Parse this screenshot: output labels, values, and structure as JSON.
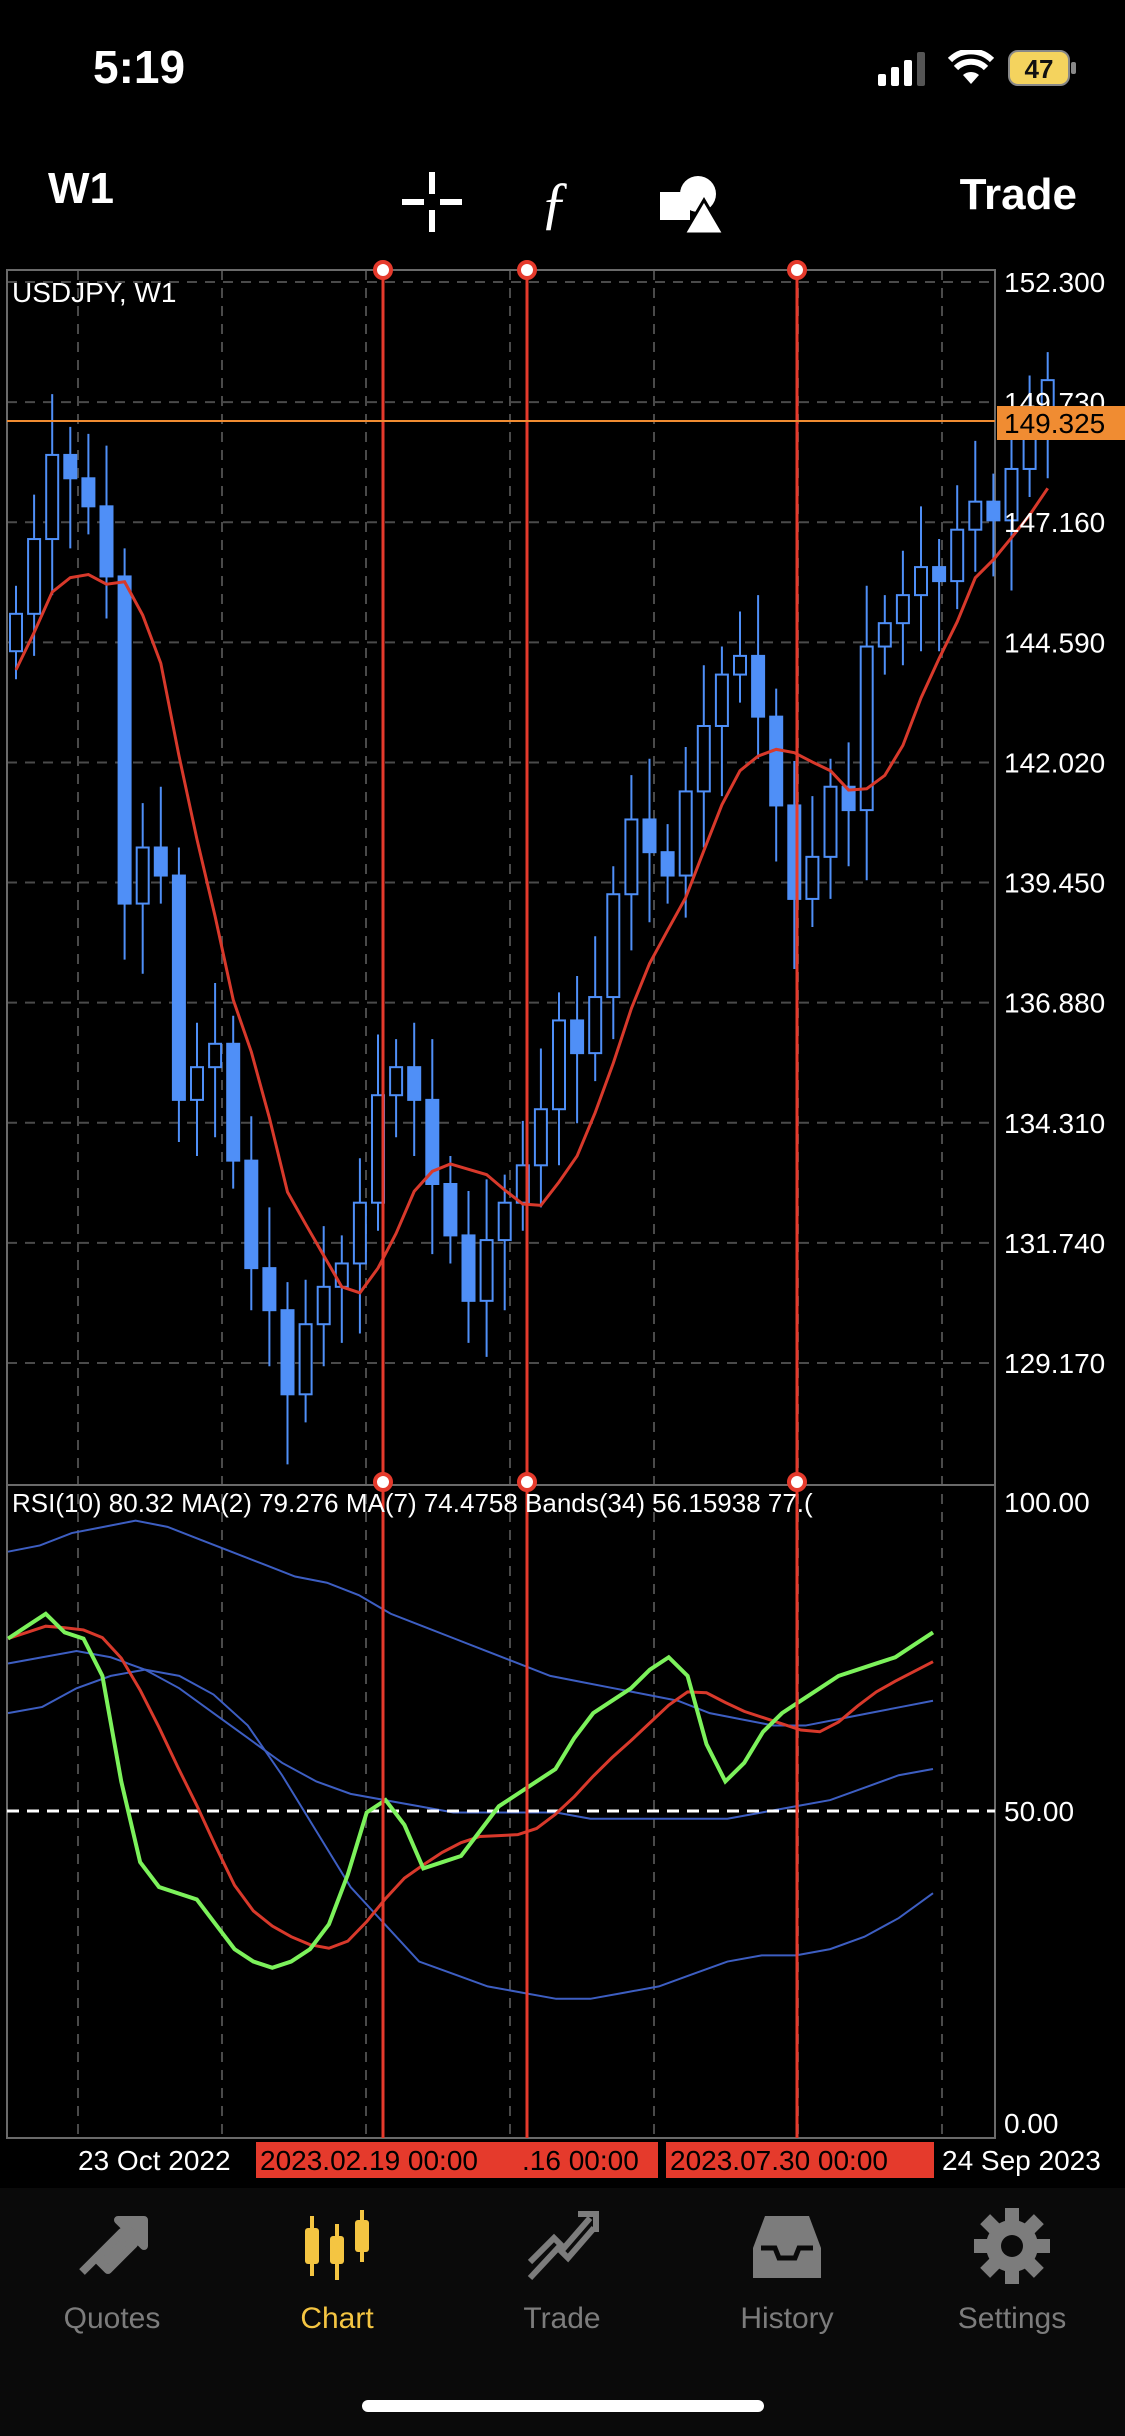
{
  "status": {
    "time": "5:19",
    "battery": "47"
  },
  "toolbar": {
    "timeframe": "W1",
    "trade_label": "Trade"
  },
  "chart": {
    "symbol_label": "USDJPY, W1",
    "current_price": "149.325",
    "price_ticks": [
      "152.300",
      "149.730",
      "147.160",
      "144.590",
      "142.020",
      "139.450",
      "136.880",
      "134.310",
      "131.740",
      "129.170"
    ],
    "indicator_label": "RSI(10) 80.32 MA(2) 79.276 MA(7) 74.4758 Bands(34) 56.15938 77.(",
    "rsi_ticks": [
      "100.00",
      "50.00",
      "0.00"
    ],
    "date_left": "23 Oct 2022",
    "date_right": "24 Sep 2023",
    "vline_labels": [
      "2023.02.19 00:00",
      ".16 00:00",
      "2023.07.30 00:00"
    ],
    "colors": {
      "bull": "#4f8ff7",
      "bear": "#4f8ff7",
      "ma": "#d8392b",
      "rsi": "#7cf25b",
      "bands": "#3d5ec2",
      "vline": "#e53a2c",
      "price_line": "#f08c32"
    }
  },
  "tabs": [
    {
      "label": "Quotes",
      "icon": "quotes-icon"
    },
    {
      "label": "Chart",
      "icon": "chart-icon"
    },
    {
      "label": "Trade",
      "icon": "trade-icon"
    },
    {
      "label": "History",
      "icon": "history-icon"
    },
    {
      "label": "Settings",
      "icon": "gear-icon"
    }
  ]
}
